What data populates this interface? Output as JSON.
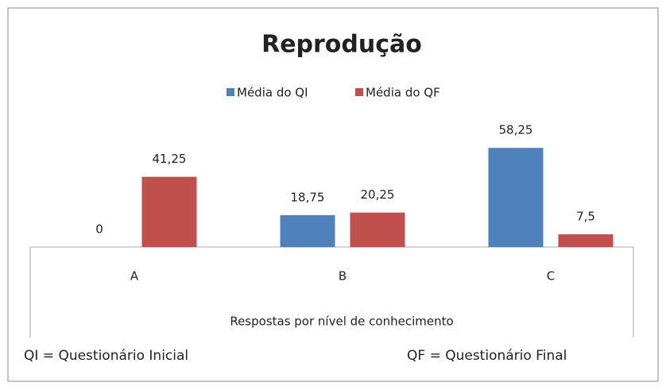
{
  "chart_data": {
    "type": "bar",
    "title": "Reprodução",
    "categories": [
      "A",
      "B",
      "C"
    ],
    "series": [
      {
        "name": "Média do QI",
        "color": "#4f81bd",
        "values": [
          0,
          18.75,
          58.25
        ],
        "value_labels": [
          "0",
          "18,75",
          "58,25"
        ]
      },
      {
        "name": "Média do QF",
        "color": "#c0504d",
        "values": [
          41.25,
          20.25,
          7.5
        ],
        "value_labels": [
          "41,25",
          "20,25",
          "7,5"
        ]
      }
    ],
    "ylim": [
      0,
      70
    ],
    "x_label": "Respostas por nível de conhecimento",
    "annotations": [
      "QI = Questionário Inicial",
      "QF = Questionário Final"
    ],
    "legend": "top"
  }
}
